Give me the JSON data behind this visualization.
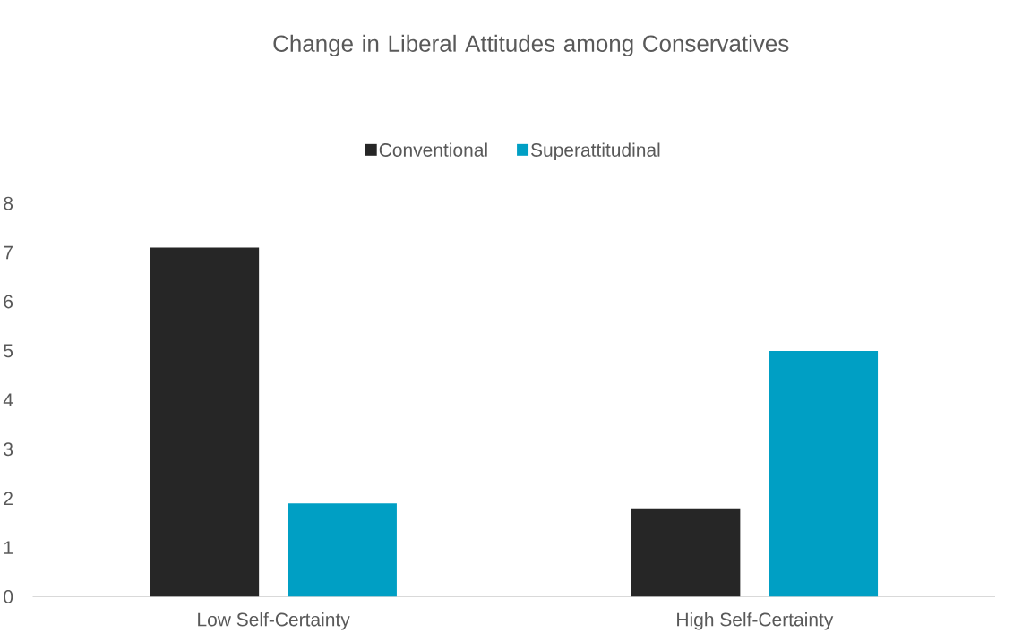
{
  "chart_data": {
    "type": "bar",
    "title": "Change in Liberal Attitudes among Conservatives",
    "categories": [
      "Low Self-Certainty",
      "High Self-Certainty"
    ],
    "series": [
      {
        "name": "Conventional",
        "color": "#262626",
        "values": [
          7.1,
          1.8
        ]
      },
      {
        "name": "Superattitudinal",
        "color": "#009fc4",
        "values": [
          1.9,
          5.0
        ]
      }
    ],
    "ylim": [
      0,
      8
    ],
    "yticks": [
      0,
      1,
      2,
      3,
      4,
      5,
      6,
      7,
      8
    ],
    "grid": false,
    "legend": "top"
  }
}
